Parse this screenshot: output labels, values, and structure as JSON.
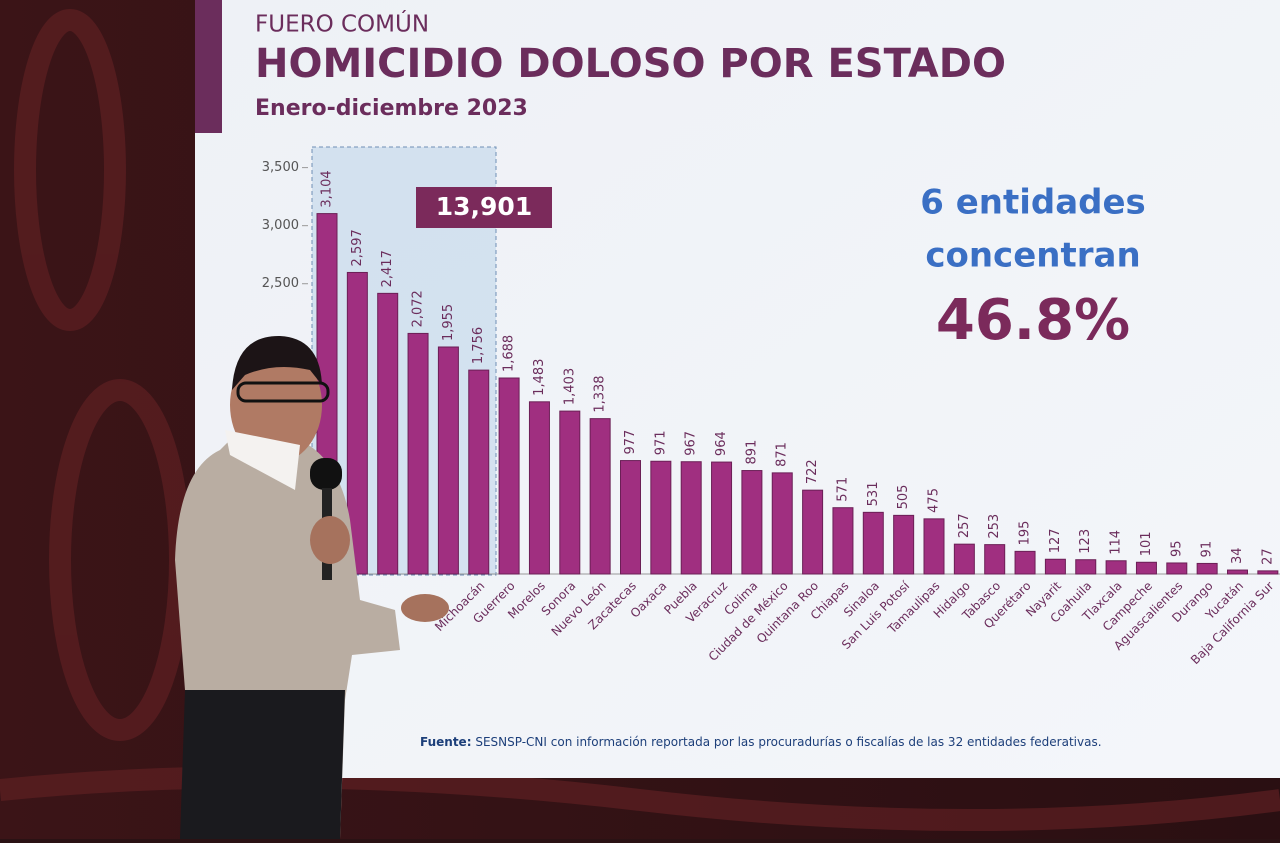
{
  "chart_data": {
    "type": "bar",
    "kicker": "FUERO COMÚN",
    "title": "HOMICIDIO DOLOSO POR ESTADO",
    "subtitle": "Enero-diciembre 2023",
    "categories": [
      null,
      null,
      null,
      null,
      null,
      "Michoacán",
      "Guerrero",
      "Morelos",
      "Sonora",
      "Nuevo León",
      "Zacatecas",
      "Oaxaca",
      "Puebla",
      "Veracruz",
      "Colima",
      "Ciudad de México",
      "Quintana Roo",
      "Chiapas",
      "Sinaloa",
      "San Luis Potosí",
      "Tamaulipas",
      "Hidalgo",
      "Tabasco",
      "Querétaro",
      "Nayarit",
      "Coahuila",
      "Tlaxcala",
      "Campeche",
      "Aguascalientes",
      "Durango",
      "Yucatán",
      "Baja California Sur"
    ],
    "values": [
      3104,
      2597,
      2417,
      2072,
      1955,
      1756,
      1688,
      1483,
      1403,
      1338,
      977,
      971,
      967,
      964,
      891,
      871,
      722,
      571,
      531,
      505,
      475,
      257,
      253,
      195,
      127,
      123,
      114,
      101,
      95,
      91,
      34,
      27
    ],
    "value_labels": [
      "3,104",
      "2,597",
      "2,417",
      "2,072",
      "1,955",
      "1,756",
      "1,688",
      "1,483",
      "1,403",
      "1,338",
      "977",
      "971",
      "967",
      "964",
      "891",
      "871",
      "722",
      "571",
      "531",
      "505",
      "475",
      "257",
      "253",
      "195",
      "127",
      "123",
      "114",
      "101",
      "95",
      "91",
      "34",
      "27"
    ],
    "color": "#a02f80",
    "ylim": [
      0,
      3600
    ],
    "yticks": [
      {
        "value": 2500,
        "label": "2,500"
      },
      {
        "value": 3000,
        "label": "3,000"
      },
      {
        "value": 3500,
        "label": "3,500"
      }
    ],
    "grid": false,
    "highlight_label": "13,901",
    "callout_line1": "6 entidades",
    "callout_line2": "concentran",
    "callout_value": "46.8%",
    "source_label": "Fuente:",
    "source_text": "SESNSP-CNI con información reportada por las procuradurías o fiscalías de las 32 entidades federativas."
  }
}
